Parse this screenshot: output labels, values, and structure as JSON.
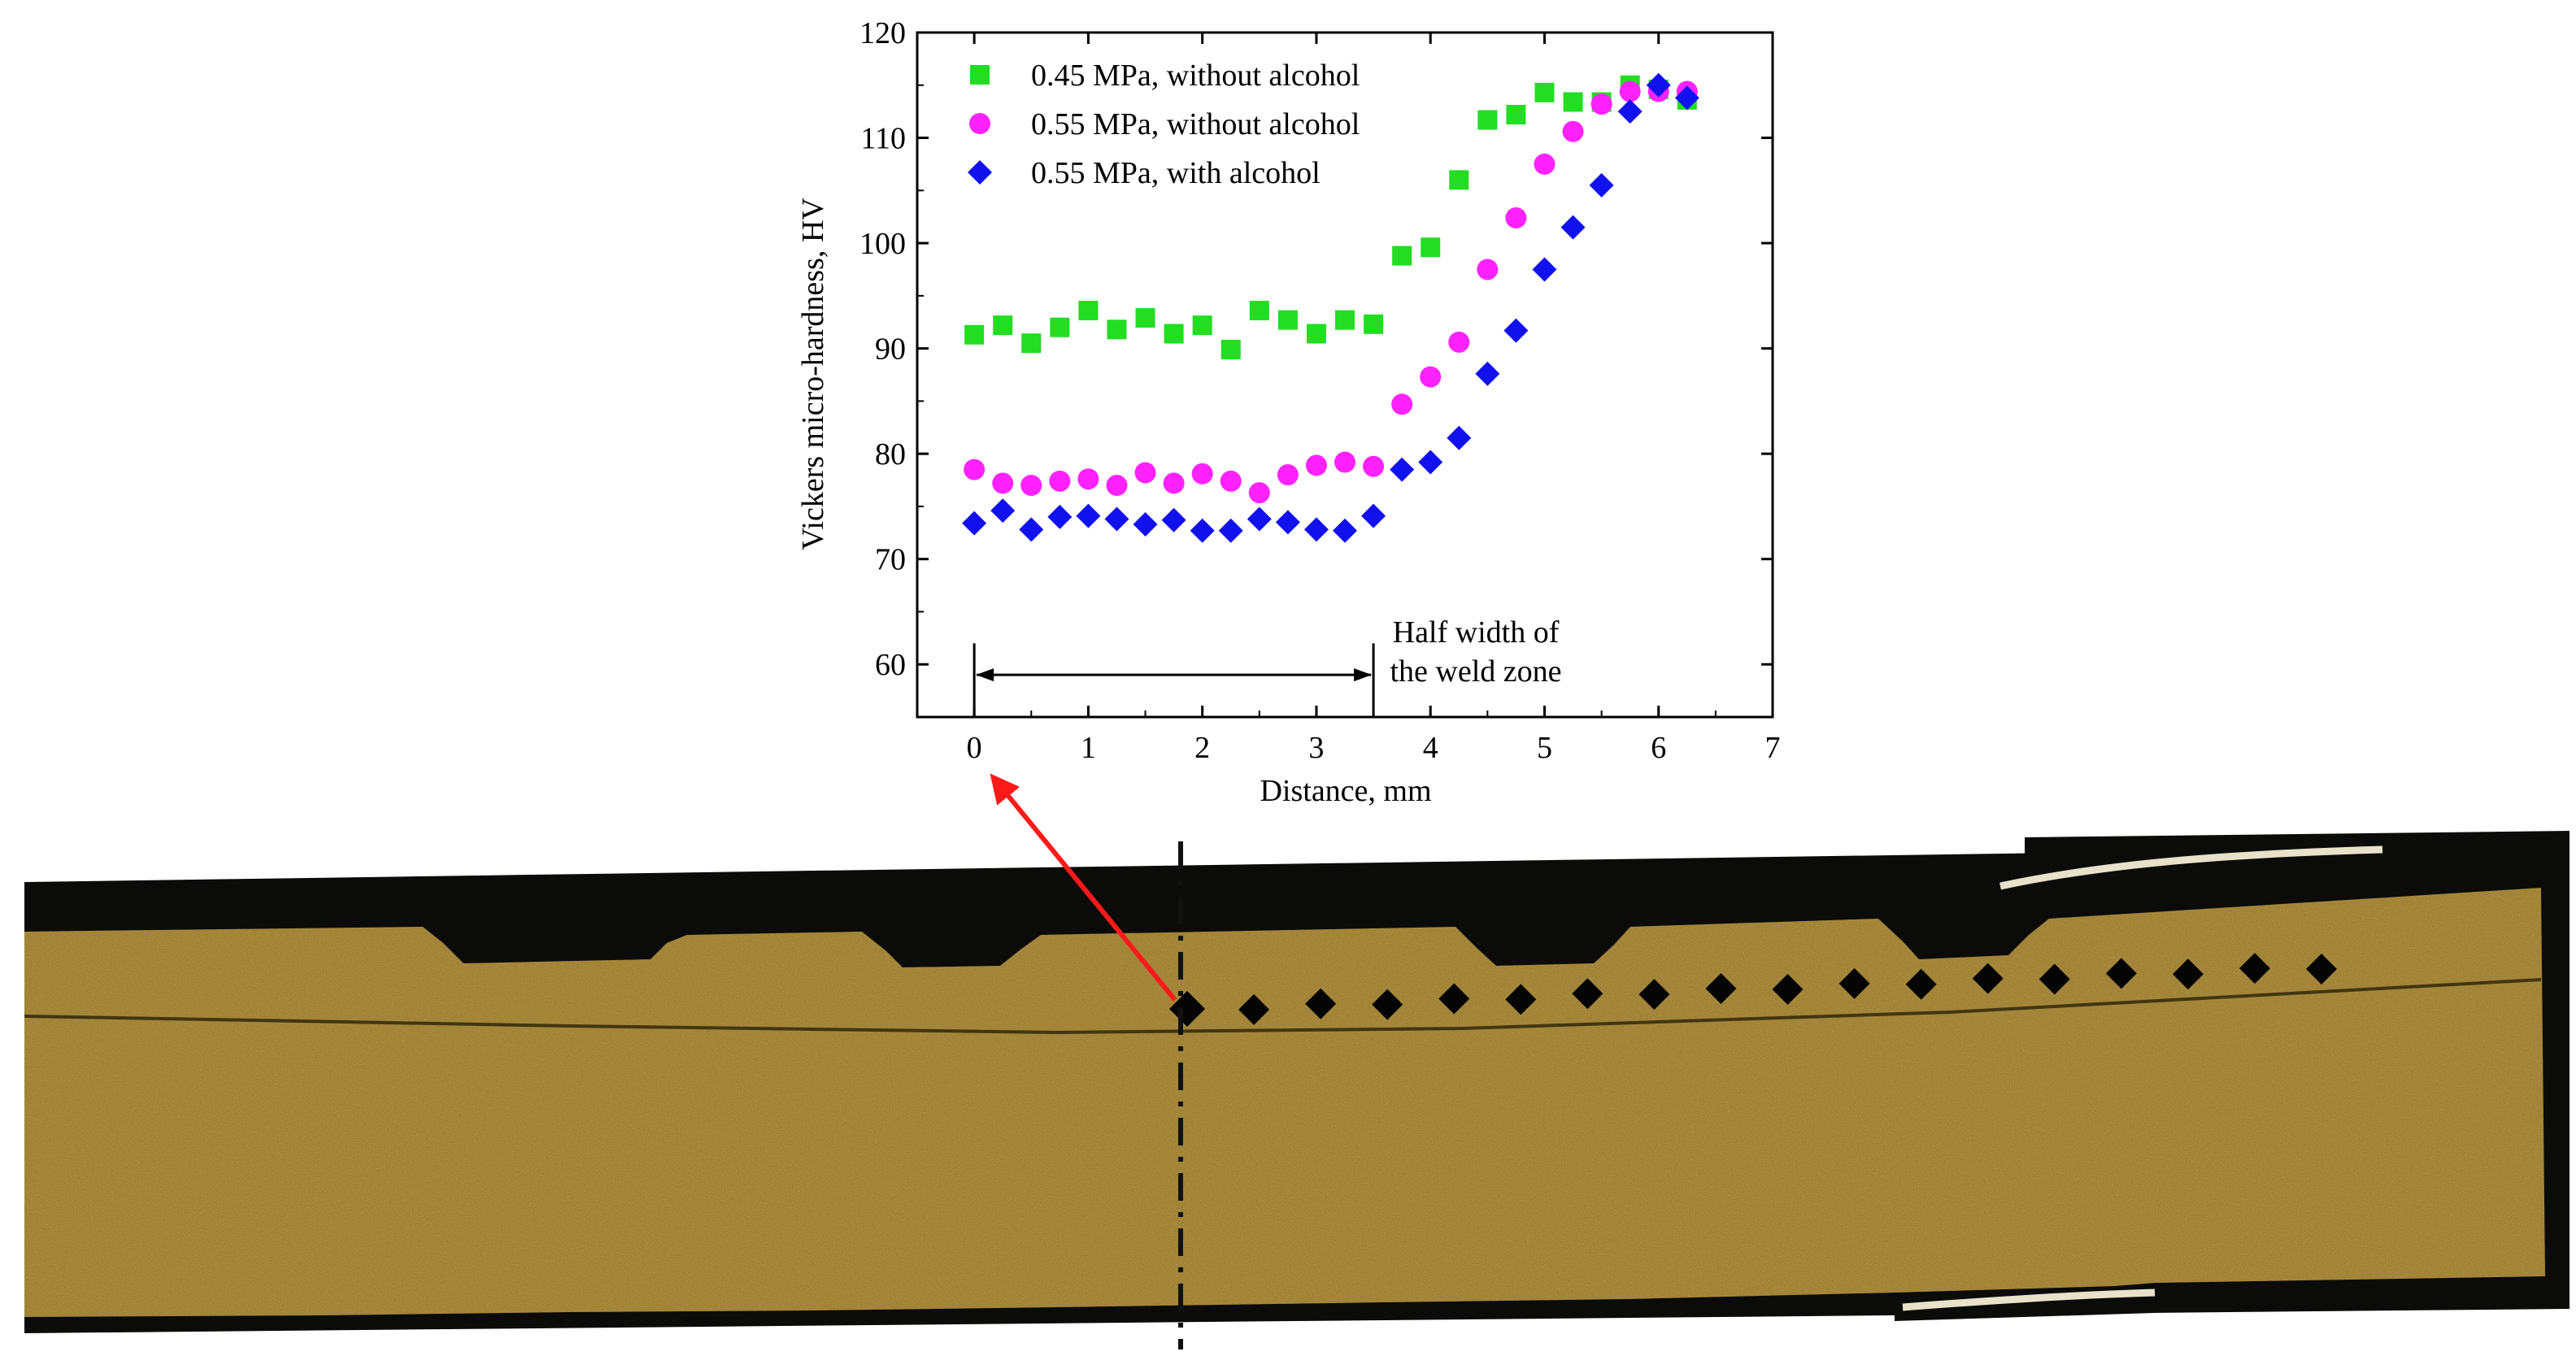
{
  "chart_data": {
    "type": "scatter",
    "xlabel": "Distance, mm",
    "ylabel": "Vickers micro-hardness, HV",
    "xlim": [
      -0.5,
      7
    ],
    "ylim": [
      55,
      120
    ],
    "x_ticks": [
      0,
      1,
      2,
      3,
      4,
      5,
      6,
      7
    ],
    "y_ticks": [
      60,
      70,
      80,
      90,
      100,
      110,
      120
    ],
    "legend_position": "top-left",
    "annotation": {
      "lines": [
        "Half width of",
        "the weld zone"
      ],
      "span": [
        0,
        3.5
      ]
    },
    "series": [
      {
        "name": "0.45 MPa,  without alcohol",
        "marker": "square",
        "color": "#22dd22",
        "x": [
          0,
          0.25,
          0.5,
          0.75,
          1.0,
          1.25,
          1.5,
          1.75,
          2.0,
          2.25,
          2.5,
          2.75,
          3.0,
          3.25,
          3.5,
          3.75,
          4.0,
          4.25,
          4.5,
          4.75,
          5.0,
          5.25,
          5.5,
          5.75,
          6.0,
          6.25
        ],
        "y": [
          91.3,
          92.2,
          90.5,
          92.0,
          93.6,
          91.8,
          92.9,
          91.4,
          92.2,
          89.9,
          93.6,
          92.7,
          91.4,
          92.7,
          92.3,
          98.8,
          99.6,
          106.0,
          111.7,
          112.2,
          114.3,
          113.4,
          113.4,
          115.0,
          114.6,
          113.6
        ]
      },
      {
        "name": "0.55 MPa,  without alcohol",
        "marker": "circle",
        "color": "#ff22ff",
        "x": [
          0,
          0.25,
          0.5,
          0.75,
          1.0,
          1.25,
          1.5,
          1.75,
          2.0,
          2.25,
          2.5,
          2.75,
          3.0,
          3.25,
          3.5,
          3.75,
          4.0,
          4.25,
          4.5,
          4.75,
          5.0,
          5.25,
          5.5,
          5.75,
          6.0,
          6.25
        ],
        "y": [
          78.5,
          77.2,
          77.0,
          77.4,
          77.6,
          77.0,
          78.2,
          77.2,
          78.1,
          77.4,
          76.3,
          78.0,
          78.9,
          79.2,
          78.8,
          84.7,
          87.3,
          90.6,
          97.5,
          102.4,
          107.5,
          110.6,
          113.2,
          114.4,
          114.4,
          114.4
        ]
      },
      {
        "name": "0.55 MPa,  with alcohol",
        "marker": "diamond",
        "color": "#1111ee",
        "x": [
          0,
          0.25,
          0.5,
          0.75,
          1.0,
          1.25,
          1.5,
          1.75,
          2.0,
          2.25,
          2.5,
          2.75,
          3.0,
          3.25,
          3.5,
          3.75,
          4.0,
          4.25,
          4.5,
          4.75,
          5.0,
          5.25,
          5.5,
          5.75,
          6.0,
          6.25
        ],
        "y": [
          73.4,
          74.6,
          72.8,
          74.0,
          74.1,
          73.8,
          73.3,
          73.7,
          72.7,
          72.7,
          73.8,
          73.5,
          72.8,
          72.7,
          74.1,
          78.5,
          79.2,
          81.5,
          87.6,
          91.7,
          97.5,
          101.5,
          105.5,
          112.5,
          115.0,
          113.8
        ]
      }
    ]
  },
  "micrograph": {
    "indent_count": 18,
    "colors": {
      "metal": "#a8862e",
      "metal_dark": "#6e5418",
      "background": "#0a0a08",
      "arrow": "#ff1a1a"
    }
  }
}
